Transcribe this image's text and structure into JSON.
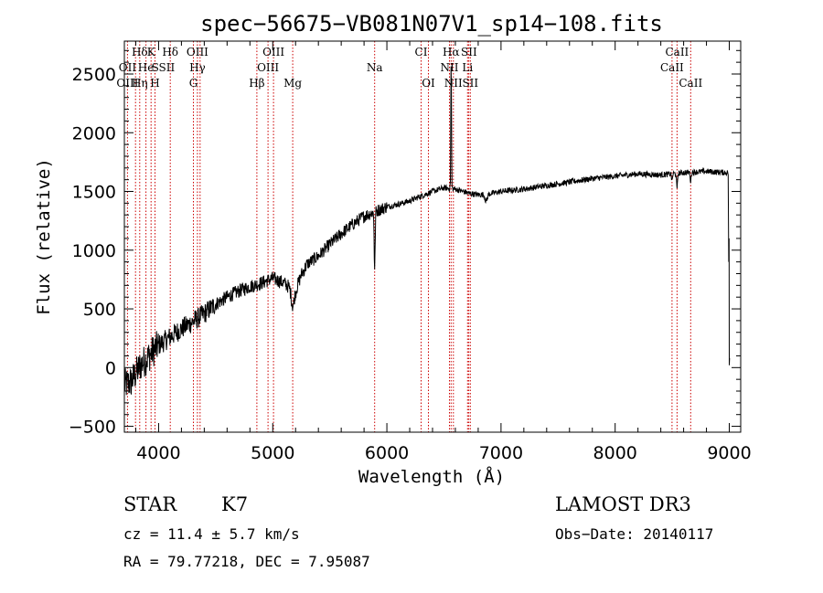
{
  "chart_data": {
    "type": "line",
    "title": "spec−56675−VB081N07V1_sp14−108.fits",
    "xlabel": "Wavelength (Å)",
    "ylabel": "Flux (relative)",
    "xlim": [
      3700,
      9100
    ],
    "ylim": [
      -550,
      2780
    ],
    "xticks": [
      4000,
      5000,
      6000,
      7000,
      8000,
      9000
    ],
    "xtick_labels": [
      "4000",
      "5000",
      "6000",
      "7000",
      "8000",
      "9000"
    ],
    "yticks": [
      -500,
      0,
      500,
      1000,
      1500,
      2000,
      2500
    ],
    "ytick_labels": [
      "−500",
      "0",
      "500",
      "1000",
      "1500",
      "2000",
      "2500"
    ],
    "line_color": "#000000",
    "marker_color": "#cc0000",
    "spectrum_anchors": [
      [
        3700,
        -150
      ],
      [
        3760,
        -120
      ],
      [
        3800,
        -50
      ],
      [
        3850,
        30
      ],
      [
        3900,
        80
      ],
      [
        3950,
        140
      ],
      [
        4000,
        190
      ],
      [
        4100,
        260
      ],
      [
        4200,
        330
      ],
      [
        4300,
        390
      ],
      [
        4400,
        460
      ],
      [
        4500,
        540
      ],
      [
        4600,
        600
      ],
      [
        4700,
        650
      ],
      [
        4800,
        690
      ],
      [
        4900,
        720
      ],
      [
        4950,
        740
      ],
      [
        5000,
        760
      ],
      [
        5100,
        720
      ],
      [
        5150,
        680
      ],
      [
        5200,
        650
      ],
      [
        5250,
        790
      ],
      [
        5300,
        880
      ],
      [
        5400,
        950
      ],
      [
        5500,
        1050
      ],
      [
        5600,
        1140
      ],
      [
        5700,
        1220
      ],
      [
        5800,
        1290
      ],
      [
        5900,
        1330
      ],
      [
        6000,
        1370
      ],
      [
        6100,
        1390
      ],
      [
        6200,
        1420
      ],
      [
        6300,
        1460
      ],
      [
        6400,
        1500
      ],
      [
        6500,
        1530
      ],
      [
        6600,
        1520
      ],
      [
        6700,
        1490
      ],
      [
        6800,
        1470
      ],
      [
        6900,
        1480
      ],
      [
        7000,
        1500
      ],
      [
        7200,
        1520
      ],
      [
        7400,
        1550
      ],
      [
        7600,
        1580
      ],
      [
        7800,
        1610
      ],
      [
        8000,
        1630
      ],
      [
        8200,
        1650
      ],
      [
        8400,
        1640
      ],
      [
        8600,
        1660
      ],
      [
        8800,
        1670
      ],
      [
        8980,
        1660
      ]
    ],
    "absorption_features": [
      {
        "center": 5175,
        "depth": 140,
        "width": 12
      },
      {
        "center": 5893,
        "depth": 500,
        "width": 4
      },
      {
        "center": 6563,
        "depth": -1100,
        "width": 3
      },
      {
        "center": 6870,
        "depth": 60,
        "width": 10
      },
      {
        "center": 8498,
        "depth": 60,
        "width": 4
      },
      {
        "center": 8542,
        "depth": 140,
        "width": 4
      },
      {
        "center": 8662,
        "depth": 80,
        "width": 4
      }
    ],
    "lines": [
      {
        "label": "Hδ",
        "wave": 3835,
        "row": 0
      },
      {
        "label": "K",
        "wave": 3934,
        "row": 0
      },
      {
        "label": "Hδ",
        "wave": 4102,
        "row": 0
      },
      {
        "label": "OIII",
        "wave": 4340,
        "row": 0
      },
      {
        "label": "OIII",
        "wave": 5007,
        "row": 0
      },
      {
        "label": "CI",
        "wave": 6300,
        "row": 0
      },
      {
        "label": "Hα",
        "wave": 6563,
        "row": 0
      },
      {
        "label": "SII",
        "wave": 6720,
        "row": 0
      },
      {
        "label": "CaII",
        "wave": 8542,
        "row": 0
      },
      {
        "label": "OII",
        "wave": 3727,
        "row": 1
      },
      {
        "label": "He",
        "wave": 3889,
        "row": 1
      },
      {
        "label": "S",
        "wave": 3970,
        "row": 1
      },
      {
        "label": "SII",
        "wave": 4072,
        "row": 1
      },
      {
        "label": "Hγ",
        "wave": 4340,
        "row": 1
      },
      {
        "label": "OIII",
        "wave": 4959,
        "row": 1
      },
      {
        "label": "Na",
        "wave": 5893,
        "row": 1
      },
      {
        "label": "NII",
        "wave": 6548,
        "row": 1
      },
      {
        "label": "Li",
        "wave": 6707,
        "row": 1
      },
      {
        "label": "CaII",
        "wave": 8498,
        "row": 1
      },
      {
        "label": "OIII",
        "wave": 3727,
        "row": 2
      },
      {
        "label": "Hη",
        "wave": 3835,
        "row": 2
      },
      {
        "label": "H",
        "wave": 3968,
        "row": 2
      },
      {
        "label": "G",
        "wave": 4305,
        "row": 2
      },
      {
        "label": "Hβ",
        "wave": 4861,
        "row": 2
      },
      {
        "label": "Mg",
        "wave": 5175,
        "row": 2
      },
      {
        "label": "OI",
        "wave": 6364,
        "row": 2
      },
      {
        "label": "NII",
        "wave": 6583,
        "row": 2
      },
      {
        "label": "SII",
        "wave": 6731,
        "row": 2
      },
      {
        "label": "CaII",
        "wave": 8662,
        "row": 2
      }
    ],
    "marker_waves": [
      3727,
      3798,
      3835,
      3889,
      3934,
      3968,
      4102,
      4305,
      4340,
      4363,
      4861,
      4959,
      5007,
      5175,
      5893,
      6300,
      6364,
      6548,
      6563,
      6583,
      6707,
      6717,
      6731,
      8498,
      8542,
      8662
    ]
  },
  "info": {
    "object_type": "STAR",
    "subclass": "K7",
    "survey": "LAMOST DR3",
    "cz": "cz = 11.4 ± 5.7 km/s",
    "obs_date": "Obs−Date: 20140117",
    "coords": "RA =  79.77218, DEC =   7.95087"
  }
}
